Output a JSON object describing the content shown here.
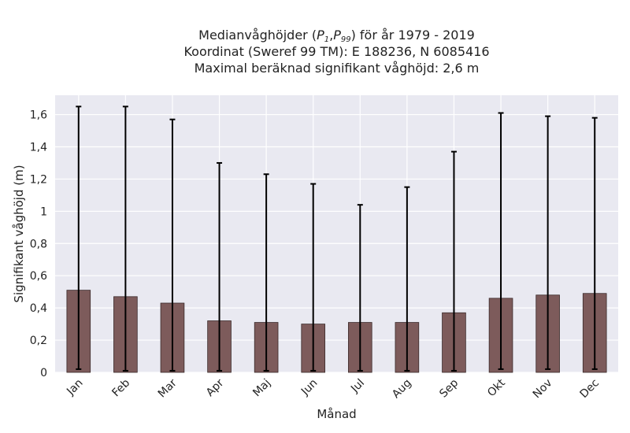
{
  "chart_data": {
    "type": "bar",
    "title_lines": {
      "line1_prefix": "Medianvåghöjder (",
      "p1_base": "P",
      "p1_sub": "1",
      "comma": ",",
      "p99_base": "P",
      "p99_sub": "99",
      "line1_suffix": ") för år 1979 - 2019",
      "line2": "Koordinat (Sweref 99 TM): E 188236, N 6085416",
      "line3": "Maximal beräknad signifikant våghöjd: 2,6 m"
    },
    "xlabel": "Månad",
    "ylabel": "Signifikant våghöjd (m)",
    "categories": [
      "Jan",
      "Feb",
      "Mar",
      "Apr",
      "Maj",
      "Jun",
      "Jul",
      "Aug",
      "Sep",
      "Okt",
      "Nov",
      "Dec"
    ],
    "series": [
      {
        "values": [
          0.51,
          0.47,
          0.43,
          0.32,
          0.31,
          0.3,
          0.31,
          0.31,
          0.37,
          0.46,
          0.48,
          0.49
        ],
        "error_low": [
          0.02,
          0.01,
          0.01,
          0.01,
          0.01,
          0.01,
          0.01,
          0.01,
          0.01,
          0.02,
          0.02,
          0.02
        ],
        "error_high": [
          1.65,
          1.65,
          1.57,
          1.3,
          1.23,
          1.17,
          1.04,
          1.15,
          1.37,
          1.61,
          1.59,
          1.58
        ]
      }
    ],
    "ylim": [
      0,
      1.72
    ],
    "yticks": [
      0,
      0.2,
      0.4,
      0.6,
      0.8,
      1,
      1.2,
      1.4,
      1.6
    ],
    "ytick_labels": [
      "0",
      "0,2",
      "0,4",
      "0,6",
      "0,8",
      "1",
      "1,2",
      "1,4",
      "1,6"
    ],
    "grid": true,
    "colors": {
      "bar": "#7d5b5b",
      "bar_edge": "#3a2a2a",
      "error_bar": "#000000",
      "plot_background": "#e9e9f1",
      "grid": "#ffffff"
    }
  }
}
